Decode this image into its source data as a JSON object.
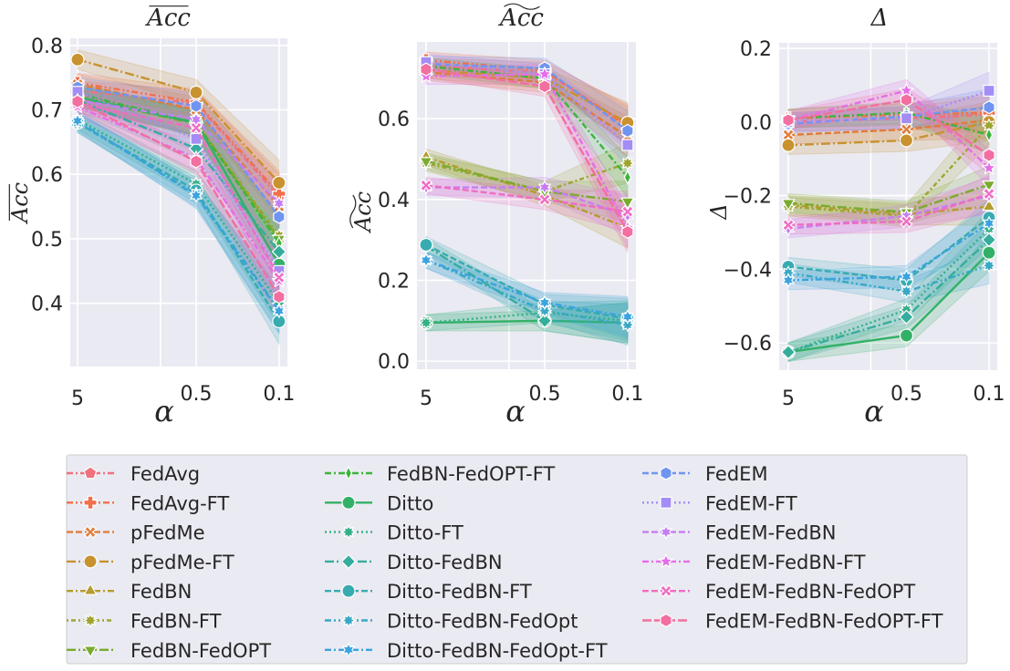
{
  "chart_data": [
    {
      "type": "line",
      "title": "Acc",
      "title_decoration": "overline",
      "xlabel": "α",
      "ylabel": "Acc",
      "ylabel_decoration": "overline",
      "x": [
        5,
        0.5,
        0.1
      ],
      "x_tick_labels": [
        "5",
        "0.5",
        "0.1"
      ],
      "x_scale": "log, reversed",
      "ylim": [
        0.302,
        0.811
      ],
      "y_ticks": [
        0.4,
        0.5,
        0.6,
        0.7,
        0.8
      ],
      "y_tick_labels": [
        "0.4",
        "0.5",
        "0.6",
        "0.7",
        "0.8"
      ],
      "grid": true,
      "ci_halfwidth": [
        0.015,
        0.02,
        0.035
      ],
      "series": [
        {
          "name": "FedAvg",
          "values": [
            0.73,
            0.71,
            0.565
          ]
        },
        {
          "name": "FedAvg-FT",
          "values": [
            0.742,
            0.712,
            0.57
          ]
        },
        {
          "name": "pFedMe",
          "values": [
            0.74,
            0.7,
            0.55
          ]
        },
        {
          "name": "pFedMe-FT",
          "values": [
            0.778,
            0.727,
            0.587
          ]
        },
        {
          "name": "FedBN",
          "values": [
            0.72,
            0.68,
            0.5
          ]
        },
        {
          "name": "FedBN-FT",
          "values": [
            0.722,
            0.68,
            0.505
          ]
        },
        {
          "name": "FedBN-FedOPT",
          "values": [
            0.72,
            0.678,
            0.5
          ]
        },
        {
          "name": "FedBN-FedOPT-FT",
          "values": [
            0.725,
            0.68,
            0.493
          ]
        },
        {
          "name": "Ditto",
          "values": [
            0.72,
            0.68,
            0.46
          ]
        },
        {
          "name": "Ditto-FT",
          "values": [
            0.685,
            0.585,
            0.4
          ]
        },
        {
          "name": "Ditto-FedBN",
          "values": [
            0.715,
            0.64,
            0.48
          ]
        },
        {
          "name": "Ditto-FedBN-FT",
          "values": [
            0.68,
            0.575,
            0.372
          ]
        },
        {
          "name": "Ditto-FedBN-FedOpt",
          "values": [
            0.68,
            0.57,
            0.39
          ]
        },
        {
          "name": "Ditto-FedBN-FedOpt-FT",
          "values": [
            0.683,
            0.567,
            0.388
          ]
        },
        {
          "name": "FedEM",
          "values": [
            0.735,
            0.706,
            0.534
          ]
        },
        {
          "name": "FedEM-FT",
          "values": [
            0.728,
            0.655,
            0.45
          ]
        },
        {
          "name": "FedEM-FedBN",
          "values": [
            0.715,
            0.685,
            0.555
          ]
        },
        {
          "name": "FedEM-FedBN-FT",
          "values": [
            0.705,
            0.625,
            0.435
          ]
        },
        {
          "name": "FedEM-FedBN-FedOPT",
          "values": [
            0.71,
            0.672,
            0.44
          ]
        },
        {
          "name": "FedEM-FedBN-FedOPT-FT",
          "values": [
            0.713,
            0.62,
            0.41
          ]
        }
      ]
    },
    {
      "type": "line",
      "title": "Acc",
      "title_decoration": "tilde",
      "xlabel": "α",
      "ylabel": "Acc",
      "ylabel_decoration": "tilde",
      "x": [
        5,
        0.5,
        0.1
      ],
      "x_tick_labels": [
        "5",
        "0.5",
        "0.1"
      ],
      "x_scale": "log, reversed",
      "ylim": [
        -0.02,
        0.79
      ],
      "y_ticks": [
        0.0,
        0.2,
        0.4,
        0.6
      ],
      "y_tick_labels": [
        "0.0",
        "0.2",
        "0.4",
        "0.6"
      ],
      "grid": true,
      "ci_halfwidth": [
        0.02,
        0.025,
        0.05
      ],
      "series": [
        {
          "name": "FedAvg",
          "values": [
            0.73,
            0.715,
            0.585
          ]
        },
        {
          "name": "FedAvg-FT",
          "values": [
            0.745,
            0.72,
            0.58
          ]
        },
        {
          "name": "pFedMe",
          "values": [
            0.715,
            0.69,
            0.555
          ]
        },
        {
          "name": "pFedMe-FT",
          "values": [
            0.72,
            0.7,
            0.59
          ]
        },
        {
          "name": "FedBN",
          "values": [
            0.505,
            0.41,
            0.33
          ]
        },
        {
          "name": "FedBN-FT",
          "values": [
            0.49,
            0.42,
            0.49
          ]
        },
        {
          "name": "FedBN-FedOPT",
          "values": [
            0.495,
            0.42,
            0.395
          ]
        },
        {
          "name": "FedBN-FedOPT-FT",
          "values": [
            0.73,
            0.7,
            0.455
          ]
        },
        {
          "name": "Ditto",
          "values": [
            0.095,
            0.1,
            0.095
          ]
        },
        {
          "name": "Ditto-FT",
          "values": [
            0.095,
            0.12,
            0.1
          ]
        },
        {
          "name": "Ditto-FedBN",
          "values": [
            0.285,
            0.1,
            0.095
          ]
        },
        {
          "name": "Ditto-FedBN-FT",
          "values": [
            0.288,
            0.14,
            0.105
          ]
        },
        {
          "name": "Ditto-FedBN-FedOpt",
          "values": [
            0.25,
            0.125,
            0.09
          ]
        },
        {
          "name": "Ditto-FedBN-FedOpt-FT",
          "values": [
            0.25,
            0.145,
            0.11
          ]
        },
        {
          "name": "FedEM",
          "values": [
            0.735,
            0.725,
            0.57
          ]
        },
        {
          "name": "FedEM-FT",
          "values": [
            0.74,
            0.71,
            0.535
          ]
        },
        {
          "name": "FedEM-FedBN",
          "values": [
            0.43,
            0.43,
            0.36
          ]
        },
        {
          "name": "FedEM-FedBN-FT",
          "values": [
            0.705,
            0.71,
            0.33
          ]
        },
        {
          "name": "FedEM-FedBN-FedOPT",
          "values": [
            0.435,
            0.4,
            0.37
          ]
        },
        {
          "name": "FedEM-FedBN-FedOPT-FT",
          "values": [
            0.722,
            0.68,
            0.32
          ]
        }
      ]
    },
    {
      "type": "line",
      "title": "Δ",
      "xlabel": "α",
      "ylabel": "Δ",
      "x": [
        5,
        0.5,
        0.1
      ],
      "x_tick_labels": [
        "5",
        "0.5",
        "0.1"
      ],
      "x_scale": "log, reversed",
      "ylim": [
        -0.674,
        0.215
      ],
      "y_ticks": [
        -0.6,
        -0.4,
        -0.2,
        0.0,
        0.2
      ],
      "y_tick_labels": [
        "−0.6",
        "−0.4",
        "−0.2",
        "0.0",
        "0.2"
      ],
      "grid": true,
      "ci_halfwidth": [
        0.025,
        0.03,
        0.05
      ],
      "series": [
        {
          "name": "FedAvg",
          "values": [
            0.0,
            0.01,
            0.02
          ]
        },
        {
          "name": "FedAvg-FT",
          "values": [
            0.01,
            0.02,
            0.025
          ]
        },
        {
          "name": "pFedMe",
          "values": [
            -0.035,
            -0.02,
            0.005
          ]
        },
        {
          "name": "pFedMe-FT",
          "values": [
            -0.063,
            -0.05,
            0.0
          ]
        },
        {
          "name": "FedBN",
          "values": [
            -0.225,
            -0.25,
            -0.23
          ]
        },
        {
          "name": "FedBN-FT",
          "values": [
            -0.23,
            -0.255,
            -0.01
          ]
        },
        {
          "name": "FedBN-FedOPT",
          "values": [
            -0.22,
            -0.245,
            -0.17
          ]
        },
        {
          "name": "FedBN-FedOPT-FT",
          "values": [
            0.01,
            0.025,
            -0.035
          ]
        },
        {
          "name": "Ditto",
          "values": [
            -0.625,
            -0.58,
            -0.355
          ]
        },
        {
          "name": "Ditto-FT",
          "values": [
            -0.625,
            -0.51,
            -0.29
          ]
        },
        {
          "name": "Ditto-FedBN",
          "values": [
            -0.625,
            -0.53,
            -0.32
          ]
        },
        {
          "name": "Ditto-FedBN-FT",
          "values": [
            -0.393,
            -0.43,
            -0.26
          ]
        },
        {
          "name": "Ditto-FedBN-FedOpt",
          "values": [
            -0.41,
            -0.46,
            -0.39
          ]
        },
        {
          "name": "Ditto-FedBN-FedOpt-FT",
          "values": [
            -0.43,
            -0.42,
            -0.275
          ]
        },
        {
          "name": "FedEM",
          "values": [
            -0.005,
            0.015,
            0.04
          ]
        },
        {
          "name": "FedEM-FT",
          "values": [
            0.0,
            0.01,
            0.085
          ]
        },
        {
          "name": "FedEM-FedBN",
          "values": [
            -0.29,
            -0.255,
            -0.2
          ]
        },
        {
          "name": "FedEM-FedBN-FT",
          "values": [
            0.005,
            0.085,
            -0.125
          ]
        },
        {
          "name": "FedEM-FedBN-FedOPT",
          "values": [
            -0.28,
            -0.27,
            -0.195
          ]
        },
        {
          "name": "FedEM-FedBN-FedOPT-FT",
          "values": [
            0.005,
            0.06,
            -0.09
          ]
        }
      ]
    }
  ],
  "legend": {
    "placement": "bottom",
    "entries": [
      {
        "name": "FedAvg",
        "color": "#f0717e",
        "marker": "pentagon",
        "dash": "dash-dot"
      },
      {
        "name": "FedAvg-FT",
        "color": "#f26f4a",
        "marker": "plus",
        "dash": "dash-dot-dot"
      },
      {
        "name": "pFedMe",
        "color": "#e07c3a",
        "marker": "x",
        "dash": "dashed"
      },
      {
        "name": "pFedMe-FT",
        "color": "#c8922f",
        "marker": "circle",
        "dash": "long-dash-dot"
      },
      {
        "name": "FedBN",
        "color": "#b59c2d",
        "marker": "triangle-up",
        "dash": "dash-dot"
      },
      {
        "name": "FedBN-FT",
        "color": "#9ea42f",
        "marker": "star8",
        "dash": "dotted-dash"
      },
      {
        "name": "FedBN-FedOPT",
        "color": "#7aab2e",
        "marker": "triangle-down",
        "dash": "long-dash-dot"
      },
      {
        "name": "FedBN-FedOPT-FT",
        "color": "#3db43d",
        "marker": "thin-diamond",
        "dash": "dash-dot"
      },
      {
        "name": "Ditto",
        "color": "#32b166",
        "marker": "circle",
        "dash": "solid"
      },
      {
        "name": "Ditto-FT",
        "color": "#34af88",
        "marker": "star8",
        "dash": "dotted"
      },
      {
        "name": "Ditto-FedBN",
        "color": "#35ad9c",
        "marker": "diamond",
        "dash": "long-dash-dot"
      },
      {
        "name": "Ditto-FedBN-FT",
        "color": "#37abb0",
        "marker": "circle",
        "dash": "dashed"
      },
      {
        "name": "Ditto-FedBN-FedOpt",
        "color": "#38a8c5",
        "marker": "star8",
        "dash": "dash-dot-dot"
      },
      {
        "name": "Ditto-FedBN-FedOpt-FT",
        "color": "#3ba3e0",
        "marker": "star6",
        "dash": "dash-dot"
      },
      {
        "name": "FedEM",
        "color": "#6f95f0",
        "marker": "hexagon",
        "dash": "dashed"
      },
      {
        "name": "FedEM-FT",
        "color": "#a38cf4",
        "marker": "square",
        "dash": "dotted"
      },
      {
        "name": "FedEM-FedBN",
        "color": "#c67ef3",
        "marker": "star6",
        "dash": "dashed"
      },
      {
        "name": "FedEM-FedBN-FT",
        "color": "#e56ee8",
        "marker": "star5",
        "dash": "dash-dot"
      },
      {
        "name": "FedEM-FedBN-FedOPT",
        "color": "#f06cc3",
        "marker": "x",
        "dash": "dashed"
      },
      {
        "name": "FedEM-FedBN-FedOPT-FT",
        "color": "#f26fa0",
        "marker": "hexagon",
        "dash": "long-dash"
      }
    ]
  }
}
